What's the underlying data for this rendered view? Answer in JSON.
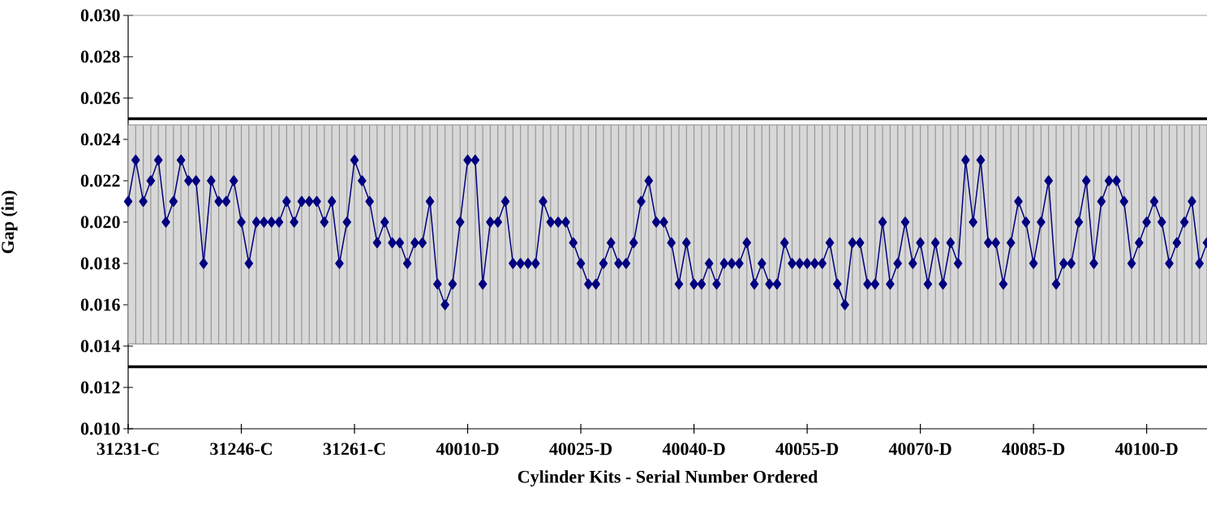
{
  "chart_data": {
    "type": "line",
    "xlabel": "Cylinder Kits - Serial Number Ordered",
    "ylabel": "Gap (in)",
    "categories": [
      "31231-C",
      null,
      null,
      null,
      null,
      null,
      null,
      null,
      null,
      null,
      null,
      null,
      null,
      null,
      null,
      "31246-C",
      null,
      null,
      null,
      null,
      null,
      null,
      null,
      null,
      null,
      null,
      null,
      null,
      null,
      null,
      "31261-C",
      null,
      null,
      null,
      null,
      null,
      null,
      null,
      null,
      null,
      null,
      null,
      null,
      null,
      null,
      "40010-D",
      null,
      null,
      null,
      null,
      null,
      null,
      null,
      null,
      null,
      null,
      null,
      null,
      null,
      null,
      "40025-D",
      null,
      null,
      null,
      null,
      null,
      null,
      null,
      null,
      null,
      null,
      null,
      null,
      null,
      null,
      "40040-D",
      null,
      null,
      null,
      null,
      null,
      null,
      null,
      null,
      null,
      null,
      null,
      null,
      null,
      null,
      "40055-D",
      null,
      null,
      null,
      null,
      null,
      null,
      null,
      null,
      null,
      null,
      null,
      null,
      null,
      null,
      "40070-D",
      null,
      null,
      null,
      null,
      null,
      null,
      null,
      null,
      null,
      null,
      null,
      null,
      null,
      null,
      "40085-D",
      null,
      null,
      null,
      null,
      null,
      null,
      null,
      null,
      null,
      null,
      null,
      null,
      null,
      null,
      "40100-D",
      null,
      null,
      null,
      null,
      null,
      null,
      null,
      null
    ],
    "series": [
      {
        "color": "#000080",
        "values": [
          0.021,
          0.023,
          0.021,
          0.022,
          0.023,
          0.02,
          0.021,
          0.023,
          0.022,
          0.022,
          0.018,
          0.022,
          0.021,
          0.021,
          0.022,
          0.02,
          0.018,
          0.02,
          0.02,
          0.02,
          0.02,
          0.021,
          0.02,
          0.021,
          0.021,
          0.021,
          0.02,
          0.021,
          0.018,
          0.02,
          0.023,
          0.022,
          0.021,
          0.019,
          0.02,
          0.019,
          0.019,
          0.018,
          0.019,
          0.019,
          0.021,
          0.017,
          0.016,
          0.017,
          0.02,
          0.023,
          0.023,
          0.017,
          0.02,
          0.02,
          0.021,
          0.018,
          0.018,
          0.018,
          0.018,
          0.021,
          0.02,
          0.02,
          0.02,
          0.019,
          0.018,
          0.017,
          0.017,
          0.018,
          0.019,
          0.018,
          0.018,
          0.019,
          0.021,
          0.022,
          0.02,
          0.02,
          0.019,
          0.017,
          0.019,
          0.017,
          0.017,
          0.018,
          0.017,
          0.018,
          0.018,
          0.018,
          0.019,
          0.017,
          0.018,
          0.017,
          0.017,
          0.019,
          0.018,
          0.018,
          0.018,
          0.018,
          0.018,
          0.019,
          0.017,
          0.016,
          0.019,
          0.019,
          0.017,
          0.017,
          0.02,
          0.017,
          0.018,
          0.02,
          0.018,
          0.019,
          0.017,
          0.019,
          0.017,
          0.019,
          0.018,
          0.023,
          0.02,
          0.023,
          0.019,
          0.019,
          0.017,
          0.019,
          0.021,
          0.02,
          0.018,
          0.02,
          0.022,
          0.017,
          0.018,
          0.018,
          0.02,
          0.022,
          0.018,
          0.021,
          0.022,
          0.022,
          0.021,
          0.018,
          0.019,
          0.02,
          0.021,
          0.02,
          0.018,
          0.019,
          0.02,
          0.021,
          0.018,
          0.019
        ]
      }
    ],
    "ylim": [
      0.01,
      0.03
    ],
    "yticks": [
      {
        "value": 0.01,
        "label": "0.010"
      },
      {
        "value": 0.012,
        "label": "0.012"
      },
      {
        "value": 0.014,
        "label": "0.014"
      },
      {
        "value": 0.016,
        "label": "0.016"
      },
      {
        "value": 0.018,
        "label": "0.018"
      },
      {
        "value": 0.02,
        "label": "0.020"
      },
      {
        "value": 0.022,
        "label": "0.022"
      },
      {
        "value": 0.024,
        "label": "0.024"
      },
      {
        "value": 0.026,
        "label": "0.026"
      },
      {
        "value": 0.028,
        "label": "0.028"
      },
      {
        "value": 0.03,
        "label": "0.030"
      }
    ],
    "ref_lines": [
      {
        "axis": "y",
        "value": 0.025,
        "color": "#000000"
      },
      {
        "axis": "y",
        "value": 0.013,
        "color": "#000000"
      }
    ],
    "bands": [
      {
        "axis": "y",
        "from": 0.0141,
        "to": 0.0247,
        "color": "#d8d8d8"
      }
    ],
    "marker": "diamond",
    "line_style": "solid"
  }
}
